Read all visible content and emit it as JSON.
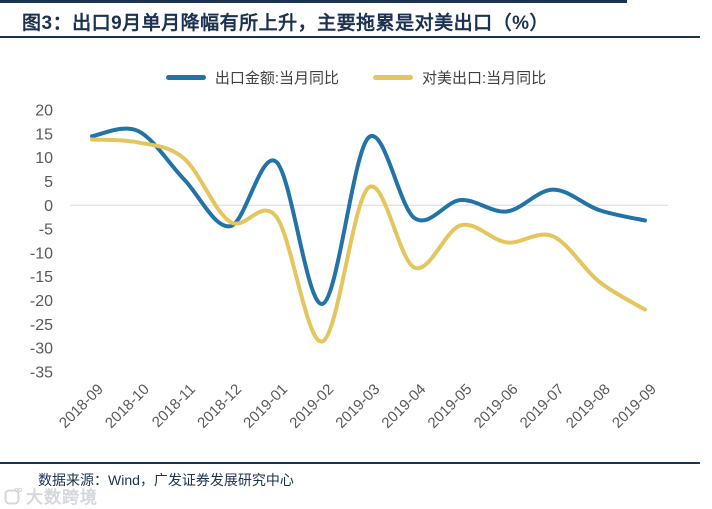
{
  "header": {
    "title": "图3：出口9月单月降幅有所上升，主要拖累是对美出口（%）"
  },
  "chart_data": {
    "type": "line",
    "smooth": true,
    "title": "出口9月单月降幅有所上升，主要拖累是对美出口（%）",
    "x": [
      "2018-09",
      "2018-10",
      "2018-11",
      "2018-12",
      "2019-01",
      "2019-02",
      "2019-03",
      "2019-04",
      "2019-05",
      "2019-06",
      "2019-07",
      "2019-08",
      "2019-09"
    ],
    "series": [
      {
        "name": "出口金额:当月同比",
        "color": "#2373A6",
        "values": [
          14.5,
          15.6,
          5.4,
          -4.4,
          9.1,
          -20.7,
          14.2,
          -2.7,
          1.1,
          -1.3,
          3.3,
          -1.0,
          -3.2
        ]
      },
      {
        "name": "对美出口:当月同比",
        "color": "#E4C65F",
        "values": [
          13.8,
          13.2,
          9.8,
          -3.5,
          -2.4,
          -28.6,
          3.7,
          -13.1,
          -4.2,
          -7.8,
          -6.5,
          -16.0,
          -21.9
        ]
      }
    ],
    "ylim": [
      -35,
      20
    ],
    "yticks": [
      20,
      15,
      10,
      5,
      0,
      -5,
      -10,
      -15,
      -20,
      -25,
      -30,
      -35
    ],
    "grid": "zero-baseline-only",
    "legend_position": "top",
    "line_width": 4,
    "axis_text_color": "#595959",
    "zero_line_color": "#D9D9D9"
  },
  "footer": {
    "source": "数据来源：Wind，广发证券发展研究中心"
  },
  "watermark": {
    "text": "大数跨境"
  },
  "colors": {
    "accent_navy": "#1B3250"
  }
}
